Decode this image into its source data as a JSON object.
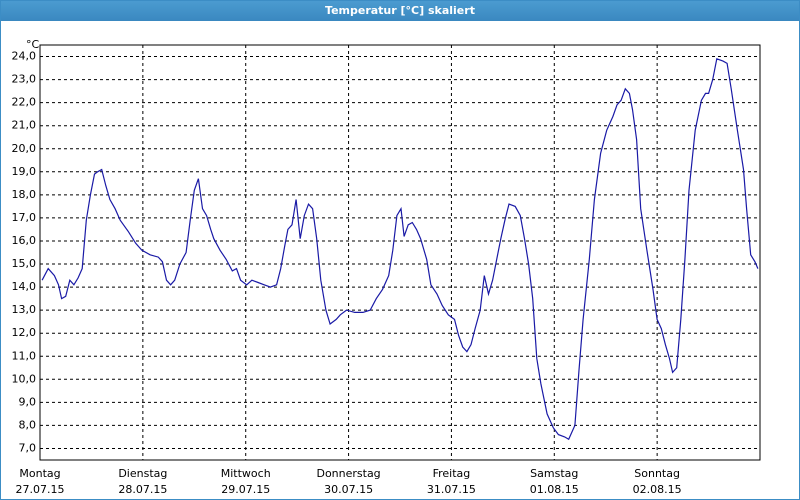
{
  "window_title": "Temperatur [°C] skaliert",
  "chart_data": {
    "type": "line",
    "y_unit": "°C",
    "grid": true,
    "color": "#1a1aa6",
    "xlim": [
      0,
      7
    ],
    "ylim": [
      6.5,
      24.5
    ],
    "xticks": [
      {
        "value": 0,
        "label": "Montag",
        "date": "27.07.15"
      },
      {
        "value": 1,
        "label": "Dienstag",
        "date": "28.07.15"
      },
      {
        "value": 2,
        "label": "Mittwoch",
        "date": "29.07.15"
      },
      {
        "value": 3,
        "label": "Donnerstag",
        "date": "30.07.15"
      },
      {
        "value": 4,
        "label": "Freitag",
        "date": "31.07.15"
      },
      {
        "value": 5,
        "label": "Samstag",
        "date": "01.08.15"
      },
      {
        "value": 6,
        "label": "Sonntag",
        "date": "02.08.15"
      }
    ],
    "yticks": [
      {
        "value": 7,
        "label": "7,0"
      },
      {
        "value": 8,
        "label": "8,0"
      },
      {
        "value": 9,
        "label": "9,0"
      },
      {
        "value": 10,
        "label": "10,0"
      },
      {
        "value": 11,
        "label": "11,0"
      },
      {
        "value": 12,
        "label": "12,0"
      },
      {
        "value": 13,
        "label": "13,0"
      },
      {
        "value": 14,
        "label": "14,0"
      },
      {
        "value": 15,
        "label": "15,0"
      },
      {
        "value": 16,
        "label": "16,0"
      },
      {
        "value": 17,
        "label": "17,0"
      },
      {
        "value": 18,
        "label": "18,0"
      },
      {
        "value": 19,
        "label": "19,0"
      },
      {
        "value": 20,
        "label": "20,0"
      },
      {
        "value": 21,
        "label": "21,0"
      },
      {
        "value": 22,
        "label": "22,0"
      },
      {
        "value": 23,
        "label": "23,0"
      },
      {
        "value": 24,
        "label": "24,0"
      }
    ],
    "x": [
      0.02,
      0.08,
      0.14,
      0.18,
      0.21,
      0.25,
      0.29,
      0.33,
      0.37,
      0.41,
      0.45,
      0.49,
      0.53,
      0.56,
      0.6,
      0.64,
      0.68,
      0.73,
      0.78,
      0.86,
      0.93,
      0.99,
      1.07,
      1.15,
      1.19,
      1.23,
      1.27,
      1.31,
      1.36,
      1.42,
      1.46,
      1.5,
      1.54,
      1.58,
      1.62,
      1.66,
      1.69,
      1.75,
      1.81,
      1.87,
      1.91,
      1.95,
      2.01,
      2.06,
      2.12,
      2.18,
      2.24,
      2.3,
      2.34,
      2.38,
      2.41,
      2.45,
      2.49,
      2.53,
      2.57,
      2.61,
      2.65,
      2.69,
      2.73,
      2.78,
      2.82,
      2.88,
      2.92,
      2.98,
      3.06,
      3.14,
      3.21,
      3.27,
      3.33,
      3.39,
      3.43,
      3.47,
      3.51,
      3.54,
      3.58,
      3.62,
      3.66,
      3.7,
      3.76,
      3.8,
      3.86,
      3.91,
      3.97,
      4.03,
      4.07,
      4.11,
      4.15,
      4.19,
      4.23,
      4.28,
      4.32,
      4.36,
      4.4,
      4.44,
      4.48,
      4.52,
      4.56,
      4.62,
      4.67,
      4.71,
      4.75,
      4.79,
      4.83,
      4.87,
      4.93,
      4.99,
      5.04,
      5.1,
      5.14,
      5.2,
      5.24,
      5.28,
      5.34,
      5.39,
      5.45,
      5.51,
      5.57,
      5.61,
      5.65,
      5.69,
      5.73,
      5.76,
      5.8,
      5.84,
      5.9,
      5.96,
      6.0,
      6.04,
      6.08,
      6.12,
      6.15,
      6.19,
      6.23,
      6.27,
      6.31,
      6.37,
      6.43,
      6.47,
      6.5,
      6.54,
      6.58,
      6.64,
      6.68,
      6.72,
      6.78,
      6.84,
      6.87,
      6.91,
      6.95,
      6.98
    ],
    "values": [
      14.3,
      14.8,
      14.5,
      14.1,
      13.5,
      13.6,
      14.3,
      14.1,
      14.4,
      14.8,
      16.9,
      18.0,
      18.9,
      19.0,
      19.1,
      18.4,
      17.8,
      17.4,
      16.9,
      16.4,
      15.9,
      15.6,
      15.4,
      15.3,
      15.1,
      14.3,
      14.1,
      14.3,
      15.0,
      15.5,
      16.9,
      18.2,
      18.7,
      17.4,
      17.1,
      16.5,
      16.1,
      15.6,
      15.2,
      14.7,
      14.8,
      14.3,
      14.1,
      14.3,
      14.2,
      14.1,
      14.0,
      14.1,
      14.8,
      15.8,
      16.5,
      16.7,
      17.8,
      16.1,
      17.1,
      17.6,
      17.4,
      16.1,
      14.3,
      13.0,
      12.4,
      12.6,
      12.8,
      13.0,
      12.9,
      12.9,
      13.0,
      13.5,
      13.9,
      14.5,
      15.6,
      17.1,
      17.4,
      16.2,
      16.7,
      16.8,
      16.5,
      16.1,
      15.2,
      14.1,
      13.7,
      13.2,
      12.8,
      12.6,
      11.9,
      11.4,
      11.2,
      11.5,
      12.2,
      13.0,
      14.5,
      13.7,
      14.3,
      15.2,
      16.1,
      16.9,
      17.6,
      17.5,
      17.1,
      16.1,
      15.0,
      13.5,
      10.9,
      9.8,
      8.5,
      7.9,
      7.6,
      7.5,
      7.4,
      8.0,
      10.4,
      12.6,
      15.2,
      17.8,
      19.8,
      20.8,
      21.4,
      21.9,
      22.1,
      22.6,
      22.4,
      21.7,
      20.4,
      17.4,
      15.6,
      13.9,
      12.6,
      12.2,
      11.5,
      10.9,
      10.3,
      10.5,
      12.6,
      15.2,
      18.2,
      20.8,
      22.1,
      22.4,
      22.4,
      23.0,
      23.9,
      23.8,
      23.7,
      22.6,
      20.8,
      19.1,
      17.4,
      15.4,
      15.1,
      14.8
    ]
  }
}
